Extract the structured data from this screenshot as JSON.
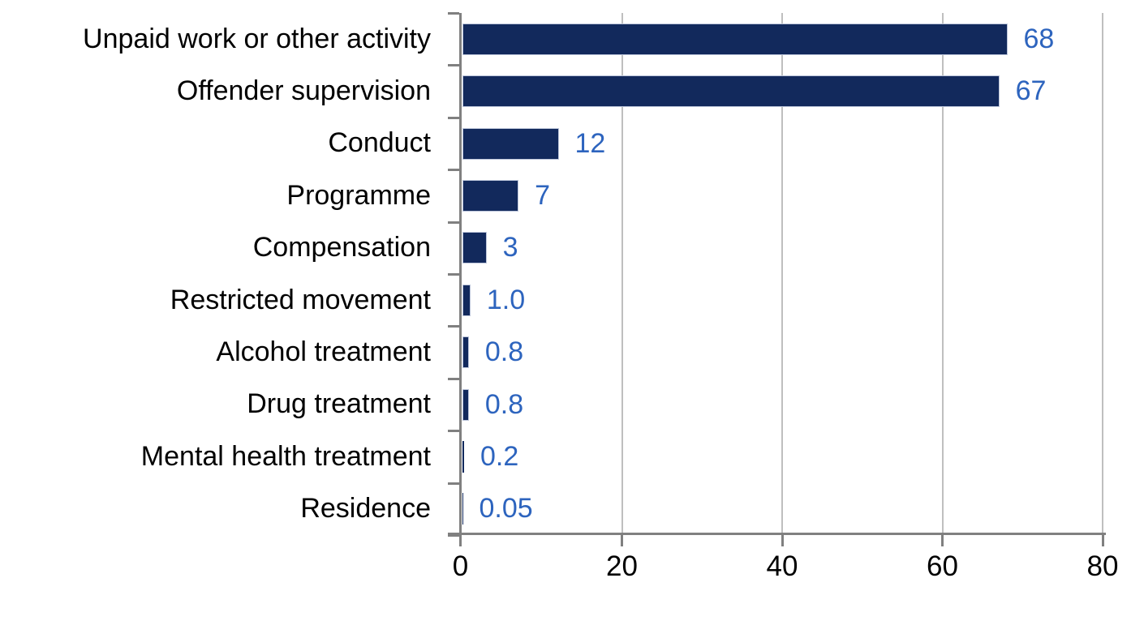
{
  "chart_data": {
    "type": "bar",
    "orientation": "horizontal",
    "title": "",
    "xlabel": "",
    "ylabel": "",
    "categories": [
      "Unpaid work or other activity",
      "Offender supervision",
      "Conduct",
      "Programme",
      "Compensation",
      "Restricted movement",
      "Alcohol treatment",
      "Drug treatment",
      "Mental health treatment",
      "Residence"
    ],
    "values": [
      68,
      67,
      12,
      7,
      3,
      1.0,
      0.8,
      0.8,
      0.2,
      0.05
    ],
    "value_labels": [
      "68",
      "67",
      "12",
      "7",
      "3",
      "1.0",
      "0.8",
      "0.8",
      "0.2",
      "0.05"
    ],
    "xlim": [
      0,
      80
    ],
    "x_ticks": [
      0,
      20,
      40,
      60,
      80
    ],
    "x_tick_labels": [
      "0",
      "20",
      "40",
      "60",
      "80"
    ],
    "grid": true,
    "legend": "none",
    "colors": {
      "bar": "#12295C",
      "bar_border": "#BCC5DA",
      "value_label": "#2D64BE",
      "axis_line": "#808080",
      "gridline": "#BFBFBF",
      "category_label": "#000000",
      "tick_label": "#000000",
      "background": "#FFFFFF"
    }
  }
}
